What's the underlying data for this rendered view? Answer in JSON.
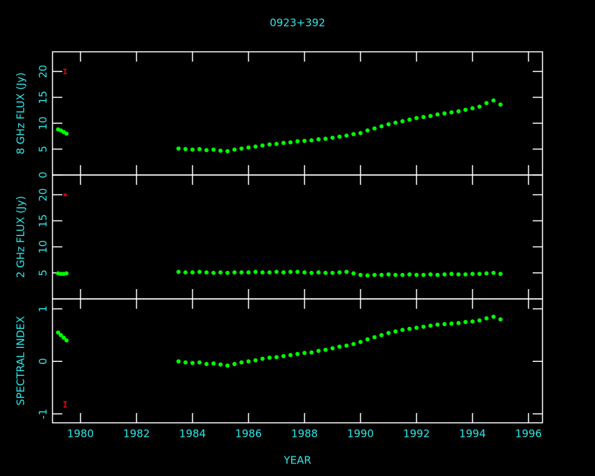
{
  "chart_data": [
    {
      "type": "scatter",
      "title": "0923+392",
      "ylabel": "8 GHz FLUX (Jy)",
      "color": "#00ff00",
      "ylim": [
        0,
        23.8
      ],
      "yticks": [
        0,
        5,
        10,
        15,
        20
      ],
      "x": [
        1979.2,
        1979.3,
        1979.4,
        1979.5,
        1983.5,
        1983.75,
        1984,
        1984.25,
        1984.5,
        1984.75,
        1985,
        1985.25,
        1985.5,
        1985.75,
        1986,
        1986.25,
        1986.5,
        1986.75,
        1987,
        1987.25,
        1987.5,
        1987.75,
        1988,
        1988.25,
        1988.5,
        1988.75,
        1989,
        1989.25,
        1989.5,
        1989.75,
        1990,
        1990.25,
        1990.5,
        1990.75,
        1991,
        1991.25,
        1991.5,
        1991.75,
        1992,
        1992.25,
        1992.5,
        1992.75,
        1993,
        1993.25,
        1993.5,
        1993.75,
        1994,
        1994.25,
        1994.5,
        1994.75,
        1995
      ],
      "values": [
        8.8,
        8.6,
        8.3,
        8.0,
        5.1,
        5.0,
        4.9,
        5.0,
        4.8,
        4.9,
        4.7,
        4.6,
        4.9,
        5.1,
        5.3,
        5.5,
        5.7,
        5.9,
        6.0,
        6.2,
        6.3,
        6.5,
        6.6,
        6.7,
        6.9,
        7.0,
        7.2,
        7.4,
        7.6,
        7.9,
        8.1,
        8.6,
        9.0,
        9.4,
        9.8,
        10.1,
        10.4,
        10.7,
        11.0,
        11.2,
        11.4,
        11.7,
        11.9,
        12.1,
        12.3,
        12.6,
        12.9,
        13.2,
        13.9,
        14.4,
        13.6
      ],
      "error_bar": {
        "x": 1979.45,
        "y": 20,
        "err": 0.4,
        "color": "#ff0000"
      }
    },
    {
      "type": "scatter",
      "ylabel": "2 GHz FLUX (Jy)",
      "color": "#00ff00",
      "ylim": [
        0,
        23.8
      ],
      "yticks": [
        5,
        10,
        15,
        20
      ],
      "x": [
        1979.2,
        1979.3,
        1979.4,
        1979.5,
        1983.5,
        1983.75,
        1984,
        1984.25,
        1984.5,
        1984.75,
        1985,
        1985.25,
        1985.5,
        1985.75,
        1986,
        1986.25,
        1986.5,
        1986.75,
        1987,
        1987.25,
        1987.5,
        1987.75,
        1988,
        1988.25,
        1988.5,
        1988.75,
        1989,
        1989.25,
        1989.5,
        1989.75,
        1990,
        1990.25,
        1990.5,
        1990.75,
        1991,
        1991.25,
        1991.5,
        1991.75,
        1992,
        1992.25,
        1992.5,
        1992.75,
        1993,
        1993.25,
        1993.5,
        1993.75,
        1994,
        1994.25,
        1994.5,
        1994.75,
        1995
      ],
      "values": [
        4.9,
        4.8,
        4.8,
        4.9,
        5.2,
        5.1,
        5.1,
        5.2,
        5.1,
        5.0,
        5.1,
        5.0,
        5.1,
        5.1,
        5.1,
        5.2,
        5.1,
        5.1,
        5.2,
        5.1,
        5.2,
        5.2,
        5.1,
        5.0,
        5.1,
        5.0,
        5.0,
        5.1,
        5.2,
        4.9,
        4.6,
        4.5,
        4.6,
        4.6,
        4.7,
        4.6,
        4.6,
        4.7,
        4.6,
        4.6,
        4.7,
        4.6,
        4.7,
        4.8,
        4.7,
        4.7,
        4.8,
        4.8,
        4.9,
        5.0,
        4.8
      ],
      "error_bar": {
        "x": 1979.45,
        "y": 20,
        "err": 0.15,
        "color": "#ff0000"
      }
    },
    {
      "type": "scatter",
      "ylabel": "SPECTRAL INDEX",
      "xlabel": "YEAR",
      "color": "#00ff00",
      "ylim": [
        -1.17,
        1.19
      ],
      "yticks": [
        -1,
        0,
        1
      ],
      "xlim": [
        1979,
        1996.5
      ],
      "xticks": [
        1980,
        1982,
        1984,
        1986,
        1988,
        1990,
        1992,
        1994,
        1996
      ],
      "x": [
        1979.2,
        1979.3,
        1979.4,
        1979.5,
        1983.5,
        1983.75,
        1984,
        1984.25,
        1984.5,
        1984.75,
        1985,
        1985.25,
        1985.5,
        1985.75,
        1986,
        1986.25,
        1986.5,
        1986.75,
        1987,
        1987.25,
        1987.5,
        1987.75,
        1988,
        1988.25,
        1988.5,
        1988.75,
        1989,
        1989.25,
        1989.5,
        1989.75,
        1990,
        1990.25,
        1990.5,
        1990.75,
        1991,
        1991.25,
        1991.5,
        1991.75,
        1992,
        1992.25,
        1992.5,
        1992.75,
        1993,
        1993.25,
        1993.5,
        1993.75,
        1994,
        1994.25,
        1994.5,
        1994.75,
        1995
      ],
      "values": [
        0.55,
        0.5,
        0.45,
        0.4,
        0.0,
        -0.02,
        -0.03,
        -0.02,
        -0.05,
        -0.04,
        -0.06,
        -0.08,
        -0.05,
        -0.02,
        0.0,
        0.02,
        0.05,
        0.07,
        0.08,
        0.1,
        0.12,
        0.14,
        0.16,
        0.17,
        0.2,
        0.22,
        0.25,
        0.28,
        0.3,
        0.33,
        0.37,
        0.42,
        0.46,
        0.5,
        0.54,
        0.57,
        0.6,
        0.62,
        0.64,
        0.66,
        0.68,
        0.7,
        0.71,
        0.72,
        0.73,
        0.75,
        0.76,
        0.78,
        0.82,
        0.85,
        0.8
      ],
      "error_bar": {
        "x": 1979.45,
        "y": -0.82,
        "err": 0.05,
        "color": "#ff0000"
      }
    }
  ]
}
